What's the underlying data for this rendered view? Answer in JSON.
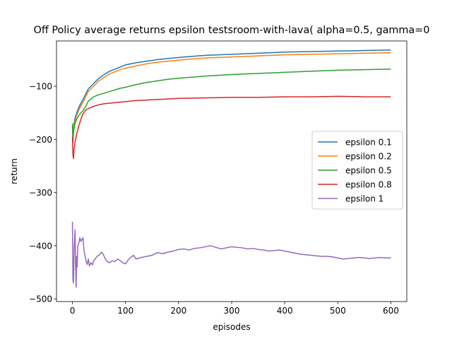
{
  "chart_data": {
    "type": "line",
    "title": "Off Policy average returns epsilon testsroom-with-lava( alpha=0.5, gamma=0",
    "xlabel": "episodes",
    "ylabel": "return",
    "xlim": [
      -30,
      630
    ],
    "ylim": [
      -505,
      -15
    ],
    "xticks": [
      0,
      100,
      200,
      300,
      400,
      500,
      600
    ],
    "yticks": [
      -500,
      -400,
      -300,
      -200,
      -100
    ],
    "grid": false,
    "legend_position": "center-right",
    "series": [
      {
        "name": "epsilon 0.1",
        "color": "#1f77b4",
        "x": [
          0,
          1,
          2,
          3,
          5,
          8,
          12,
          16,
          20,
          25,
          30,
          40,
          50,
          60,
          70,
          80,
          90,
          100,
          120,
          140,
          160,
          180,
          200,
          250,
          300,
          350,
          400,
          450,
          500,
          550,
          600
        ],
        "y": [
          -175,
          -195,
          -180,
          -170,
          -160,
          -150,
          -140,
          -132,
          -125,
          -115,
          -105,
          -95,
          -85,
          -78,
          -72,
          -68,
          -64,
          -60,
          -56,
          -53,
          -50,
          -48,
          -46,
          -42,
          -40,
          -38,
          -36,
          -35,
          -34,
          -33,
          -32
        ]
      },
      {
        "name": "epsilon 0.2",
        "color": "#ff7f0e",
        "x": [
          0,
          1,
          2,
          3,
          5,
          8,
          12,
          16,
          20,
          25,
          30,
          40,
          50,
          60,
          70,
          80,
          90,
          100,
          120,
          140,
          160,
          180,
          200,
          250,
          300,
          350,
          400,
          450,
          500,
          550,
          600
        ],
        "y": [
          -180,
          -200,
          -185,
          -175,
          -165,
          -155,
          -145,
          -137,
          -130,
          -120,
          -110,
          -100,
          -90,
          -83,
          -77,
          -73,
          -69,
          -66,
          -62,
          -58,
          -55,
          -53,
          -51,
          -47,
          -45,
          -43,
          -41,
          -40,
          -39,
          -38,
          -37
        ]
      },
      {
        "name": "epsilon 0.5",
        "color": "#2ca02c",
        "x": [
          0,
          1,
          2,
          3,
          5,
          8,
          12,
          16,
          20,
          25,
          30,
          40,
          50,
          60,
          70,
          80,
          90,
          100,
          120,
          140,
          160,
          180,
          200,
          250,
          300,
          350,
          400,
          450,
          500,
          550,
          600
        ],
        "y": [
          -170,
          -205,
          -190,
          -180,
          -170,
          -162,
          -155,
          -150,
          -146,
          -138,
          -128,
          -120,
          -116,
          -113,
          -110,
          -107,
          -104,
          -102,
          -97,
          -93,
          -90,
          -87,
          -85,
          -81,
          -78,
          -76,
          -74,
          -72,
          -70,
          -69,
          -68
        ]
      },
      {
        "name": "epsilon 0.8",
        "color": "#d62728",
        "x": [
          0,
          1,
          2,
          3,
          5,
          8,
          12,
          16,
          20,
          25,
          30,
          40,
          50,
          60,
          70,
          80,
          90,
          100,
          120,
          140,
          160,
          180,
          200,
          250,
          300,
          350,
          400,
          450,
          500,
          550,
          600
        ],
        "y": [
          -195,
          -230,
          -236,
          -220,
          -205,
          -190,
          -175,
          -162,
          -152,
          -145,
          -142,
          -138,
          -135,
          -133,
          -132,
          -131,
          -130,
          -129,
          -127,
          -126,
          -125,
          -124,
          -123,
          -122,
          -121,
          -121,
          -120,
          -120,
          -119,
          -120,
          -120
        ]
      },
      {
        "name": "epsilon 1",
        "color": "#9467bd",
        "x": [
          0,
          1,
          2,
          3,
          4,
          5,
          6,
          7,
          8,
          9,
          10,
          12,
          14,
          16,
          18,
          20,
          22,
          24,
          26,
          28,
          30,
          32,
          35,
          38,
          40,
          43,
          46,
          50,
          55,
          58,
          62,
          66,
          70,
          75,
          80,
          85,
          90,
          95,
          100,
          105,
          110,
          115,
          120,
          130,
          140,
          150,
          160,
          170,
          180,
          190,
          200,
          210,
          220,
          230,
          240,
          250,
          260,
          270,
          280,
          290,
          300,
          310,
          320,
          330,
          340,
          350,
          360,
          370,
          380,
          390,
          400,
          410,
          420,
          430,
          440,
          450,
          460,
          470,
          480,
          490,
          500,
          510,
          520,
          530,
          540,
          550,
          560,
          570,
          580,
          590,
          600
        ],
        "y": [
          -355,
          -465,
          -470,
          -410,
          -390,
          -370,
          -440,
          -478,
          -420,
          -440,
          -400,
          -395,
          -385,
          -392,
          -388,
          -385,
          -410,
          -420,
          -430,
          -435,
          -425,
          -438,
          -432,
          -436,
          -428,
          -425,
          -420,
          -418,
          -412,
          -416,
          -425,
          -430,
          -432,
          -428,
          -430,
          -425,
          -428,
          -432,
          -434,
          -427,
          -422,
          -418,
          -425,
          -422,
          -420,
          -418,
          -413,
          -415,
          -412,
          -410,
          -407,
          -406,
          -408,
          -405,
          -404,
          -402,
          -400,
          -403,
          -406,
          -404,
          -402,
          -403,
          -404,
          -406,
          -405,
          -407,
          -408,
          -410,
          -409,
          -408,
          -410,
          -412,
          -414,
          -416,
          -417,
          -418,
          -419,
          -420,
          -420,
          -421,
          -423,
          -425,
          -424,
          -423,
          -422,
          -423,
          -424,
          -423,
          -422,
          -423,
          -423
        ]
      }
    ]
  }
}
